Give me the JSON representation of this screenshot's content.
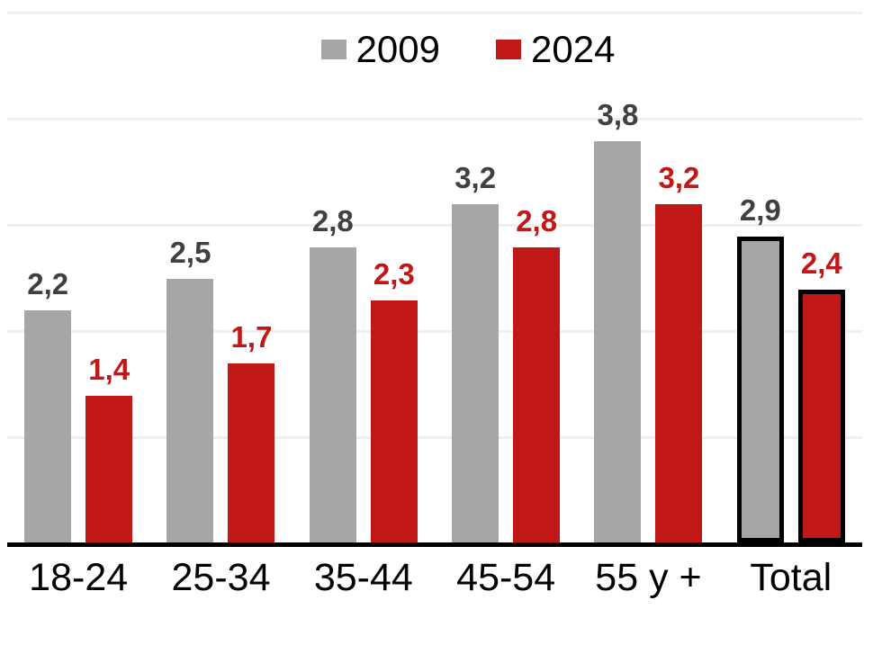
{
  "chart_data": {
    "type": "bar",
    "title": "",
    "categories": [
      "18-24",
      "25-34",
      "35-44",
      "45-54",
      "55 y +",
      "Total"
    ],
    "series": [
      {
        "name": "2009",
        "color": "#A6A6A6",
        "label_color": "#404040",
        "values": [
          2.2,
          2.5,
          2.8,
          3.2,
          3.8,
          2.9
        ],
        "labels": [
          "2,2",
          "2,5",
          "2,8",
          "3,2",
          "3,8",
          "2,9"
        ]
      },
      {
        "name": "2024",
        "color": "#C21717",
        "label_color": "#C21717",
        "values": [
          1.4,
          1.7,
          2.3,
          2.8,
          3.2,
          2.4
        ],
        "labels": [
          "1,4",
          "1,7",
          "2,3",
          "2,8",
          "3,2",
          "2,4"
        ]
      }
    ],
    "ylim": [
      0,
      5
    ],
    "gridline_values": [
      1,
      2,
      3,
      4,
      5
    ],
    "grid_on": true,
    "grid_color": "#EFEFEF",
    "axis_color": "#000000",
    "highlight_category": "Total",
    "highlight_border_color": "#000000",
    "legend_position": "top-center",
    "decimal_separator": ","
  }
}
